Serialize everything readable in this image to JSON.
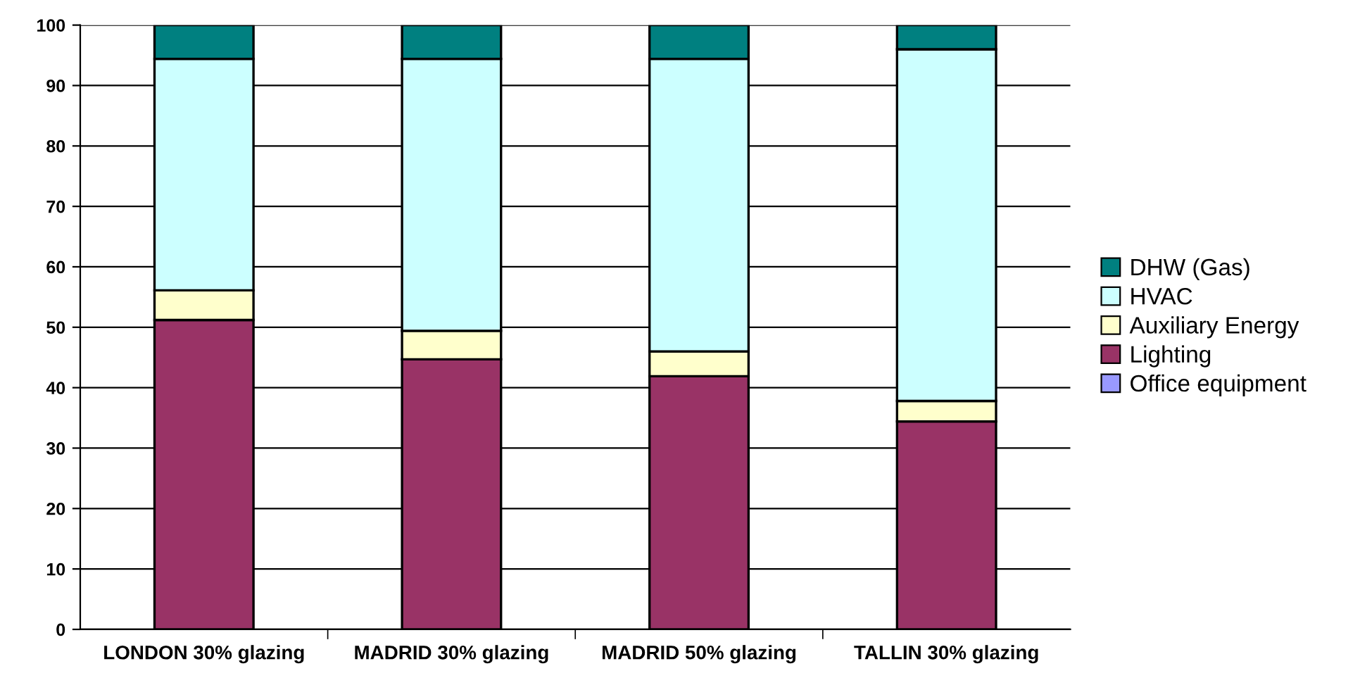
{
  "chart_data": {
    "type": "bar",
    "stacked": true,
    "categories": [
      "LONDON 30% glazing",
      "MADRID 30% glazing",
      "MADRID 50% glazing",
      "TALLIN 30% glazing"
    ],
    "series": [
      {
        "name": "Office equipment",
        "color": "#9999ff",
        "values": [
          0,
          0,
          0,
          0
        ]
      },
      {
        "name": "Lighting",
        "color": "#993366",
        "values": [
          51.2,
          44.7,
          41.9,
          34.4
        ]
      },
      {
        "name": "Auxiliary Energy",
        "color": "#ffffcc",
        "values": [
          4.9,
          4.7,
          4.1,
          3.4
        ]
      },
      {
        "name": "HVAC",
        "color": "#ccffff",
        "values": [
          38.3,
          45.0,
          48.4,
          58.2
        ]
      },
      {
        "name": "DHW (Gas)",
        "color": "#008080",
        "values": [
          5.6,
          5.6,
          5.6,
          4.0
        ]
      }
    ],
    "ylim": [
      0,
      100
    ],
    "yticks": [
      0,
      10,
      20,
      30,
      40,
      50,
      60,
      70,
      80,
      90,
      100
    ],
    "grid": "y",
    "legend": "right"
  }
}
